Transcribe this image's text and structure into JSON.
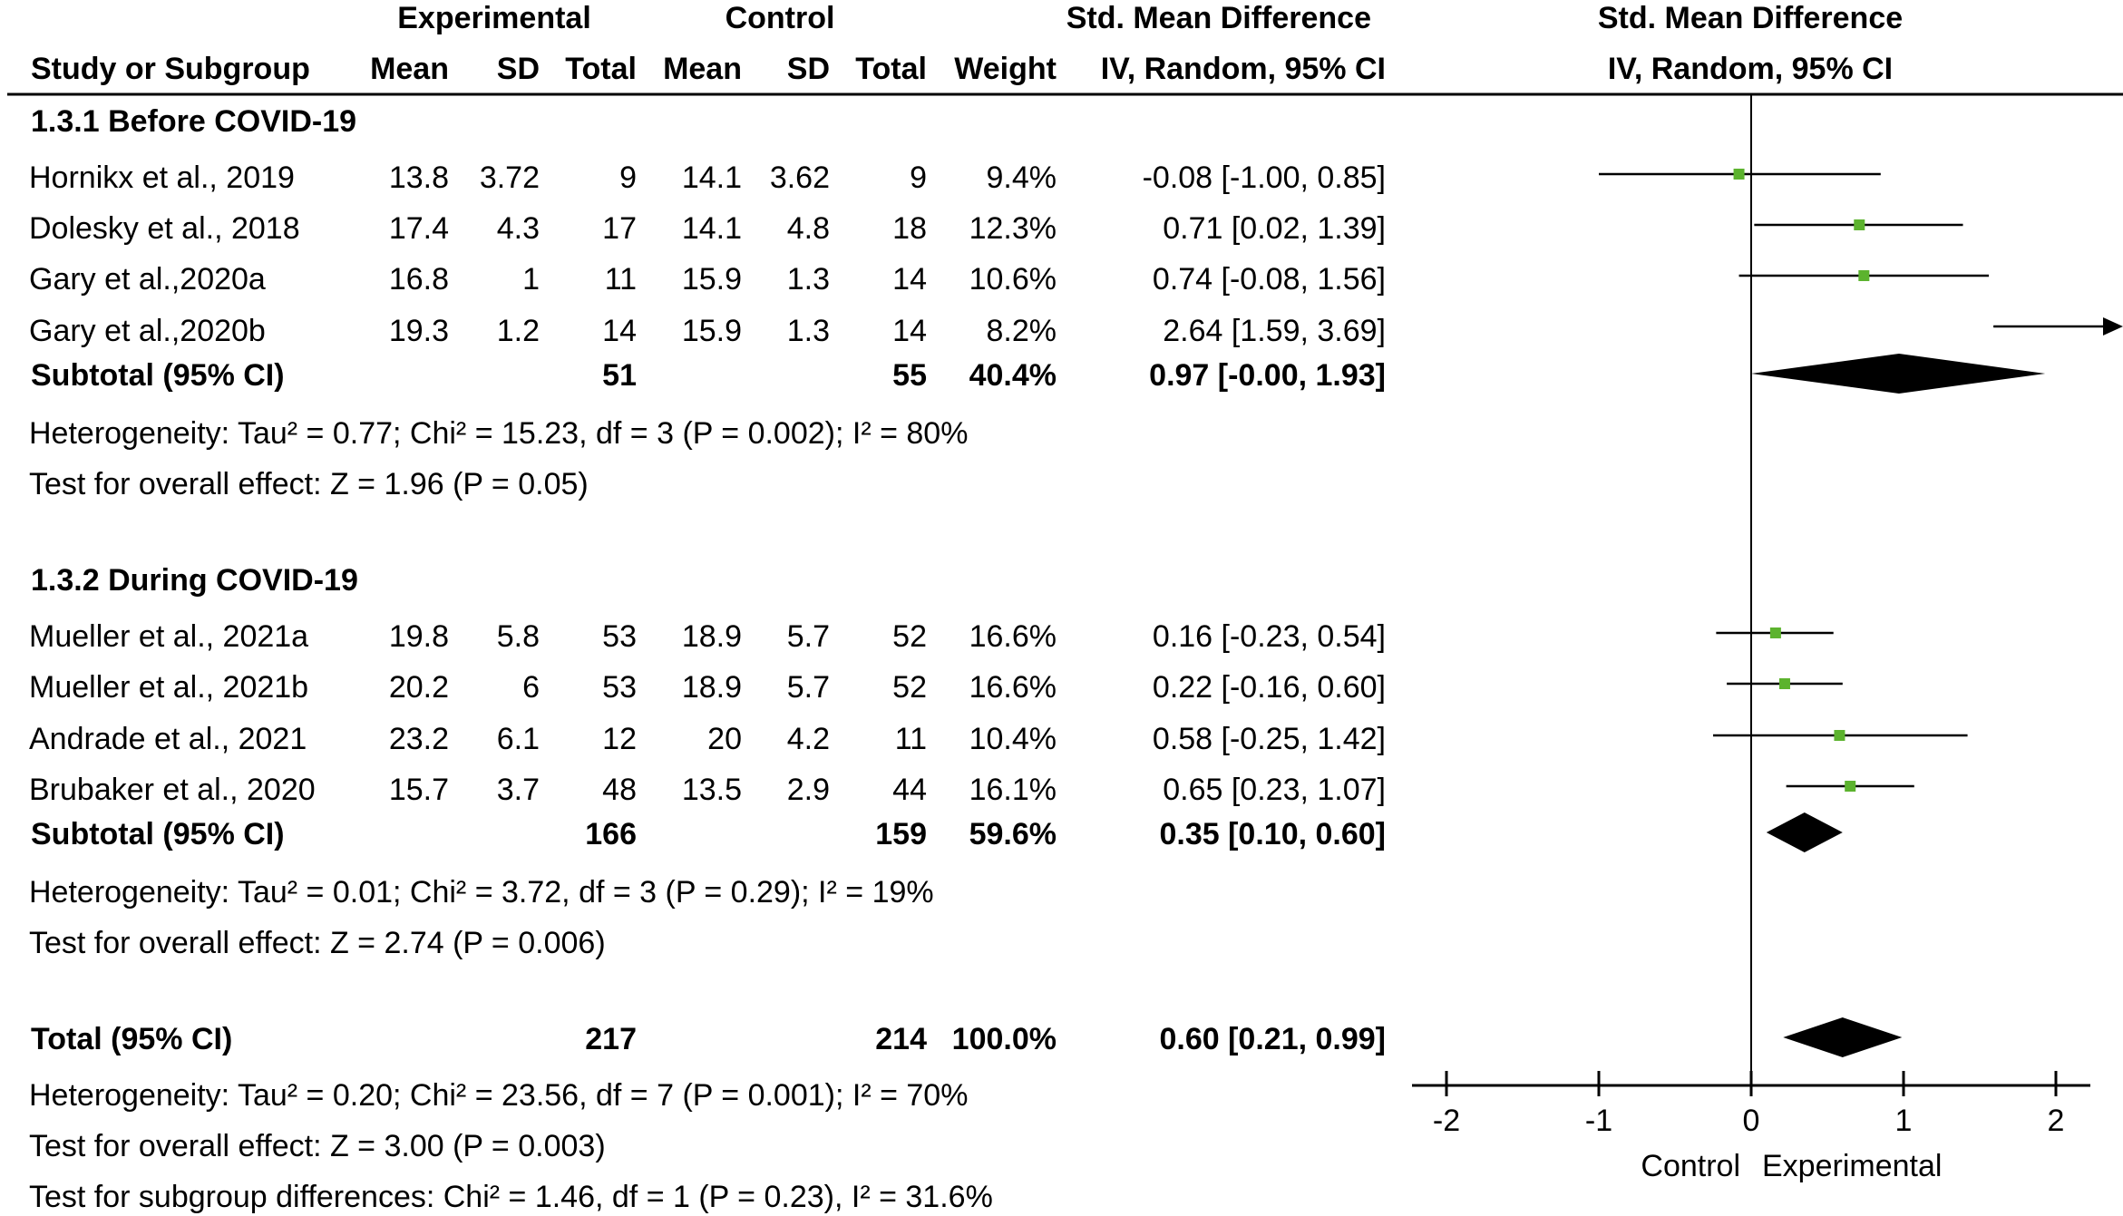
{
  "header": {
    "group_exp": "Experimental",
    "group_ctl": "Control",
    "smd_title": "Std. Mean Difference",
    "smd_sub": "IV, Random, 95% CI",
    "plot_title": "Std. Mean Difference",
    "plot_sub": "IV, Random, 95% CI",
    "cols": [
      "Study or Subgroup",
      "Mean",
      "SD",
      "Total",
      "Mean",
      "SD",
      "Total",
      "Weight"
    ]
  },
  "subgroups": [
    {
      "label": "1.3.1 Before COVID-19",
      "studies": [
        {
          "name": "Hornikx et al., 2019",
          "exp_mean": "13.8",
          "exp_sd": "3.72",
          "exp_total": "9",
          "ctl_mean": "14.1",
          "ctl_sd": "3.62",
          "ctl_total": "9",
          "weight": "9.4%",
          "ci_text": "-0.08 [-1.00, 0.85]"
        },
        {
          "name": "Dolesky et al., 2018",
          "exp_mean": "17.4",
          "exp_sd": "4.3",
          "exp_total": "17",
          "ctl_mean": "14.1",
          "ctl_sd": "4.8",
          "ctl_total": "18",
          "weight": "12.3%",
          "ci_text": "0.71 [0.02, 1.39]"
        },
        {
          "name": "Gary et al.,2020a",
          "exp_mean": "16.8",
          "exp_sd": "1",
          "exp_total": "11",
          "ctl_mean": "15.9",
          "ctl_sd": "1.3",
          "ctl_total": "14",
          "weight": "10.6%",
          "ci_text": "0.74 [-0.08, 1.56]"
        },
        {
          "name": "Gary et al.,2020b",
          "exp_mean": "19.3",
          "exp_sd": "1.2",
          "exp_total": "14",
          "ctl_mean": "15.9",
          "ctl_sd": "1.3",
          "ctl_total": "14",
          "weight": "8.2%",
          "ci_text": "2.64 [1.59, 3.69]"
        }
      ],
      "subtotal": {
        "label": "Subtotal (95% CI)",
        "exp_total": "51",
        "ctl_total": "55",
        "weight": "40.4%",
        "ci_text": "0.97 [-0.00, 1.93]"
      },
      "heterogeneity": "Heterogeneity: Tau² = 0.77; Chi² = 15.23, df = 3 (P = 0.002); I² = 80%",
      "overall": "Test for overall effect: Z = 1.96 (P = 0.05)"
    },
    {
      "label": "1.3.2 During COVID-19",
      "studies": [
        {
          "name": "Mueller et al., 2021a",
          "exp_mean": "19.8",
          "exp_sd": "5.8",
          "exp_total": "53",
          "ctl_mean": "18.9",
          "ctl_sd": "5.7",
          "ctl_total": "52",
          "weight": "16.6%",
          "ci_text": "0.16 [-0.23, 0.54]"
        },
        {
          "name": "Mueller et al., 2021b",
          "exp_mean": "20.2",
          "exp_sd": "6",
          "exp_total": "53",
          "ctl_mean": "18.9",
          "ctl_sd": "5.7",
          "ctl_total": "52",
          "weight": "16.6%",
          "ci_text": "0.22 [-0.16, 0.60]"
        },
        {
          "name": "Andrade et al., 2021",
          "exp_mean": "23.2",
          "exp_sd": "6.1",
          "exp_total": "12",
          "ctl_mean": "20",
          "ctl_sd": "4.2",
          "ctl_total": "11",
          "weight": "10.4%",
          "ci_text": "0.58 [-0.25, 1.42]"
        },
        {
          "name": "Brubaker et al., 2020",
          "exp_mean": "15.7",
          "exp_sd": "3.7",
          "exp_total": "48",
          "ctl_mean": "13.5",
          "ctl_sd": "2.9",
          "ctl_total": "44",
          "weight": "16.1%",
          "ci_text": "0.65 [0.23, 1.07]"
        }
      ],
      "subtotal": {
        "label": "Subtotal (95% CI)",
        "exp_total": "166",
        "ctl_total": "159",
        "weight": "59.6%",
        "ci_text": "0.35 [0.10, 0.60]"
      },
      "heterogeneity": "Heterogeneity: Tau² = 0.01; Chi² = 3.72, df = 3 (P = 0.29); I² = 19%",
      "overall": "Test for overall effect: Z = 2.74 (P = 0.006)"
    }
  ],
  "total": {
    "label": "Total (95% CI)",
    "exp_total": "217",
    "ctl_total": "214",
    "weight": "100.0%",
    "ci_text": "0.60 [0.21, 0.99]",
    "heterogeneity": "Heterogeneity: Tau² = 0.20; Chi² = 23.56, df = 7 (P = 0.001); I² = 70%",
    "overall": "Test for overall effect: Z = 3.00 (P = 0.003)",
    "subgroup_diff": "Test for subgroup differences: Chi² = 1.46, df = 1 (P = 0.23), I² = 31.6%"
  },
  "chart_data": {
    "type": "forest",
    "title": "Std. Mean Difference",
    "subtitle": "IV, Random, 95% CI",
    "xlim": [
      -2,
      2
    ],
    "xticks": [
      "-2",
      "-1",
      "0",
      "1",
      "2"
    ],
    "xlabel_left": "Control",
    "xlabel_right": "Experimental",
    "point_color": "#5cb32e",
    "series": [
      {
        "name": "Hornikx et al., 2019",
        "est": -0.08,
        "lo": -1.0,
        "hi": 0.85
      },
      {
        "name": "Dolesky et al., 2018",
        "est": 0.71,
        "lo": 0.02,
        "hi": 1.39
      },
      {
        "name": "Gary et al.,2020a",
        "est": 0.74,
        "lo": -0.08,
        "hi": 1.56
      },
      {
        "name": "Gary et al.,2020b",
        "est": 2.64,
        "lo": 1.59,
        "hi": 3.69,
        "clipped": true
      },
      {
        "name": "Subtotal (95% CI)",
        "est": 0.97,
        "lo": -0.0,
        "hi": 1.93,
        "diamond": true
      },
      {
        "name": "Mueller et al., 2021a",
        "est": 0.16,
        "lo": -0.23,
        "hi": 0.54
      },
      {
        "name": "Mueller et al., 2021b",
        "est": 0.22,
        "lo": -0.16,
        "hi": 0.6
      },
      {
        "name": "Andrade et al., 2021",
        "est": 0.58,
        "lo": -0.25,
        "hi": 1.42
      },
      {
        "name": "Brubaker et al., 2020",
        "est": 0.65,
        "lo": 0.23,
        "hi": 1.07
      },
      {
        "name": "Subtotal (95% CI)",
        "est": 0.35,
        "lo": 0.1,
        "hi": 0.6,
        "diamond": true
      },
      {
        "name": "Total (95% CI)",
        "est": 0.6,
        "lo": 0.21,
        "hi": 0.99,
        "diamond": true
      }
    ]
  }
}
